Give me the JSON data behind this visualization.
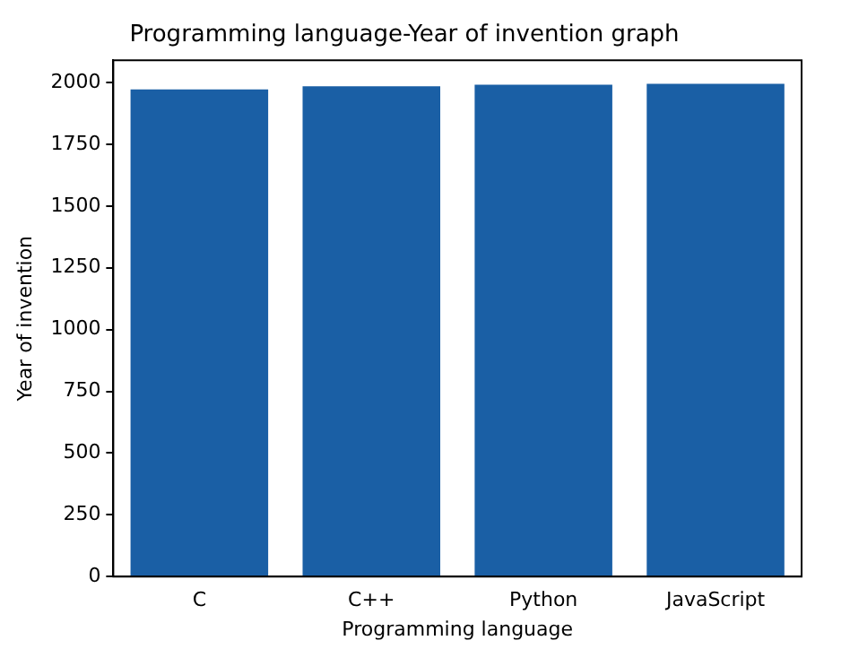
{
  "chart_data": {
    "type": "bar",
    "title": "Programming language-Year of invention graph",
    "xlabel": "Programming language",
    "ylabel": "Year of invention",
    "categories": [
      "C",
      "C++",
      "Python",
      "JavaScript"
    ],
    "values": [
      1972,
      1985,
      1991,
      1995
    ],
    "color": "#1a5fa5",
    "ylim": [
      0,
      2090
    ],
    "yticks": [
      0,
      250,
      500,
      750,
      1000,
      1250,
      1500,
      1750,
      2000
    ],
    "grid": false,
    "legend": false
  }
}
